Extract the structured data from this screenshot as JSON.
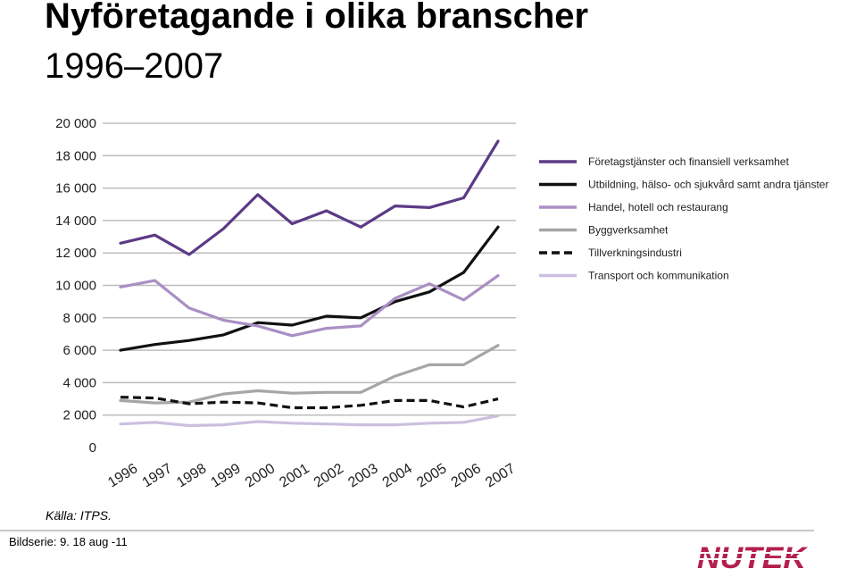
{
  "slide": {
    "title_line1": "Nyföretagande i olika branscher",
    "title_line2": "1996–2007",
    "source": "Källa: ITPS.",
    "slide_ref": "Bildserie: 9. 18 aug -11",
    "logo_text": "NUTEK",
    "logo_color": "#b3204c"
  },
  "chart_data": {
    "type": "line",
    "title": "",
    "xlabel": "",
    "ylabel": "",
    "x": [
      "1996",
      "1997",
      "1998",
      "1999",
      "2000",
      "2001",
      "2002",
      "2003",
      "2004",
      "2005",
      "2006",
      "2007"
    ],
    "ylim": [
      0,
      20000
    ],
    "yticks": [
      0,
      2000,
      4000,
      6000,
      8000,
      10000,
      12000,
      14000,
      16000,
      18000,
      20000
    ],
    "ytick_labels": [
      "0",
      "2 000",
      "4 000",
      "6 000",
      "8 000",
      "10 000",
      "12 000",
      "14 000",
      "16 000",
      "18 000",
      "20 000"
    ],
    "grid": "horizontal",
    "legend_position": "right",
    "series": [
      {
        "name": "Företagstjänster och finansiell verksamhet",
        "color": "#5b3a86",
        "dash": "solid",
        "values": [
          12600,
          13100,
          11900,
          13500,
          15600,
          13800,
          14600,
          13600,
          14900,
          14800,
          15400,
          18900
        ]
      },
      {
        "name": "Utbildning, hälso- och sjukvård samt andra tjänster",
        "color": "#111111",
        "dash": "solid",
        "values": [
          6000,
          6350,
          6600,
          6950,
          7700,
          7550,
          8100,
          8000,
          9000,
          9600,
          10800,
          13600
        ]
      },
      {
        "name": "Handel, hotell och restaurang",
        "color": "#a98fc4",
        "dash": "solid",
        "values": [
          9900,
          10300,
          8600,
          7850,
          7500,
          6900,
          7350,
          7500,
          9200,
          10100,
          9100,
          10600
        ]
      },
      {
        "name": "Byggverksamhet",
        "color": "#a6a6a6",
        "dash": "solid",
        "values": [
          2900,
          2750,
          2800,
          3300,
          3500,
          3350,
          3400,
          3400,
          4400,
          5100,
          5100,
          6300
        ]
      },
      {
        "name": "Tillverkningsindustri",
        "color": "#111111",
        "dash": "dashed",
        "values": [
          3100,
          3050,
          2700,
          2800,
          2750,
          2450,
          2450,
          2600,
          2900,
          2900,
          2500,
          3000
        ]
      },
      {
        "name": "Transport och kommunikation",
        "color": "#cbbfe0",
        "dash": "solid",
        "values": [
          1450,
          1550,
          1350,
          1400,
          1600,
          1500,
          1450,
          1400,
          1400,
          1500,
          1550,
          1950
        ]
      }
    ]
  }
}
